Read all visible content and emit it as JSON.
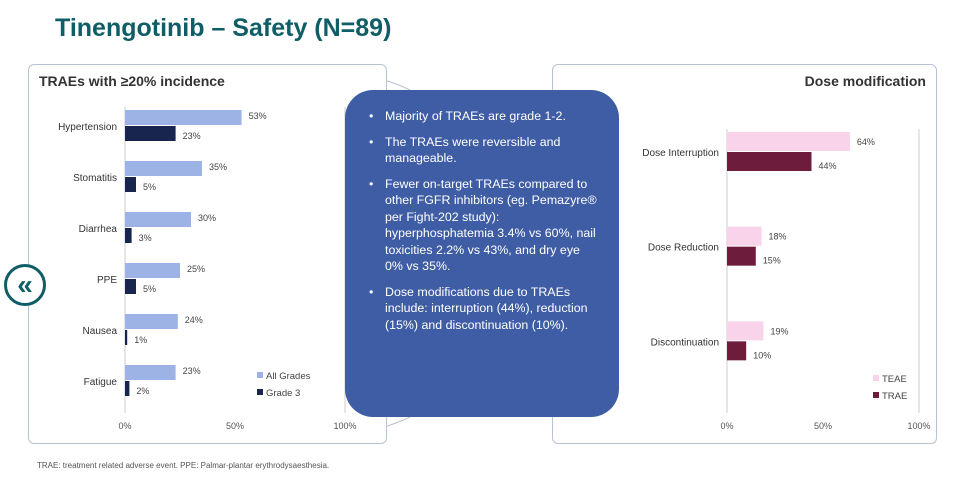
{
  "title": "Tinengotinib – Safety (N=89)",
  "nav": {
    "back_icon": "«"
  },
  "footnote": "TRAE: treatment related adverse event. PPE: Palmar-plantar erythrodysaesthesia.",
  "colors": {
    "title": "#0f5e67",
    "all_grades": "#9db3e6",
    "grade3": "#17254f",
    "teae": "#f8d3ea",
    "trae": "#6d1d3b",
    "center_box": "#3f5da4"
  },
  "center_box": {
    "bullets": [
      "Majority of TRAEs are grade 1-2.",
      "The TRAEs were reversible and manageable.",
      "Fewer on-target TRAEs compared to other FGFR inhibitors (eg. Pemazyre® per Fight-202 study): hyperphosphatemia 3.4% vs 60%, nail toxicities 2.2% vs 43%, and dry eye 0% vs 35%.",
      "Dose modifications due to TRAEs include: interruption (44%), reduction (15%) and discontinuation (10%)."
    ]
  },
  "chart_data": [
    {
      "type": "bar",
      "orientation": "horizontal",
      "title": "TRAEs with ≥20% incidence",
      "categories": [
        "Hypertension",
        "Stomatitis",
        "Diarrhea",
        "PPE",
        "Nausea",
        "Fatigue"
      ],
      "series": [
        {
          "name": "All Grades",
          "values": [
            53,
            35,
            30,
            25,
            24,
            23
          ],
          "labels": [
            "53%",
            "35%",
            "30%",
            "25%",
            "24%",
            "23%"
          ]
        },
        {
          "name": "Grade 3",
          "values": [
            23,
            5,
            3,
            5,
            1,
            2
          ],
          "labels": [
            "23%",
            "5%",
            "3%",
            "5%",
            "1%",
            "2%"
          ]
        }
      ],
      "xlim": [
        0,
        100
      ],
      "xticks": [
        "0%",
        "50%",
        "100%"
      ],
      "legend": "bottom-right"
    },
    {
      "type": "bar",
      "orientation": "horizontal",
      "title": "Dose modification",
      "categories": [
        "Dose Interruption",
        "Dose Reduction",
        "Discontinuation"
      ],
      "series": [
        {
          "name": "TEAE",
          "values": [
            64,
            18,
            19
          ],
          "labels": [
            "64%",
            "18%",
            "19%"
          ]
        },
        {
          "name": "TRAE",
          "values": [
            44,
            15,
            10
          ],
          "labels": [
            "44%",
            "15%",
            "10%"
          ]
        }
      ],
      "xlim": [
        0,
        100
      ],
      "xticks": [
        "0%",
        "50%",
        "100%"
      ],
      "legend": "bottom-right"
    }
  ]
}
